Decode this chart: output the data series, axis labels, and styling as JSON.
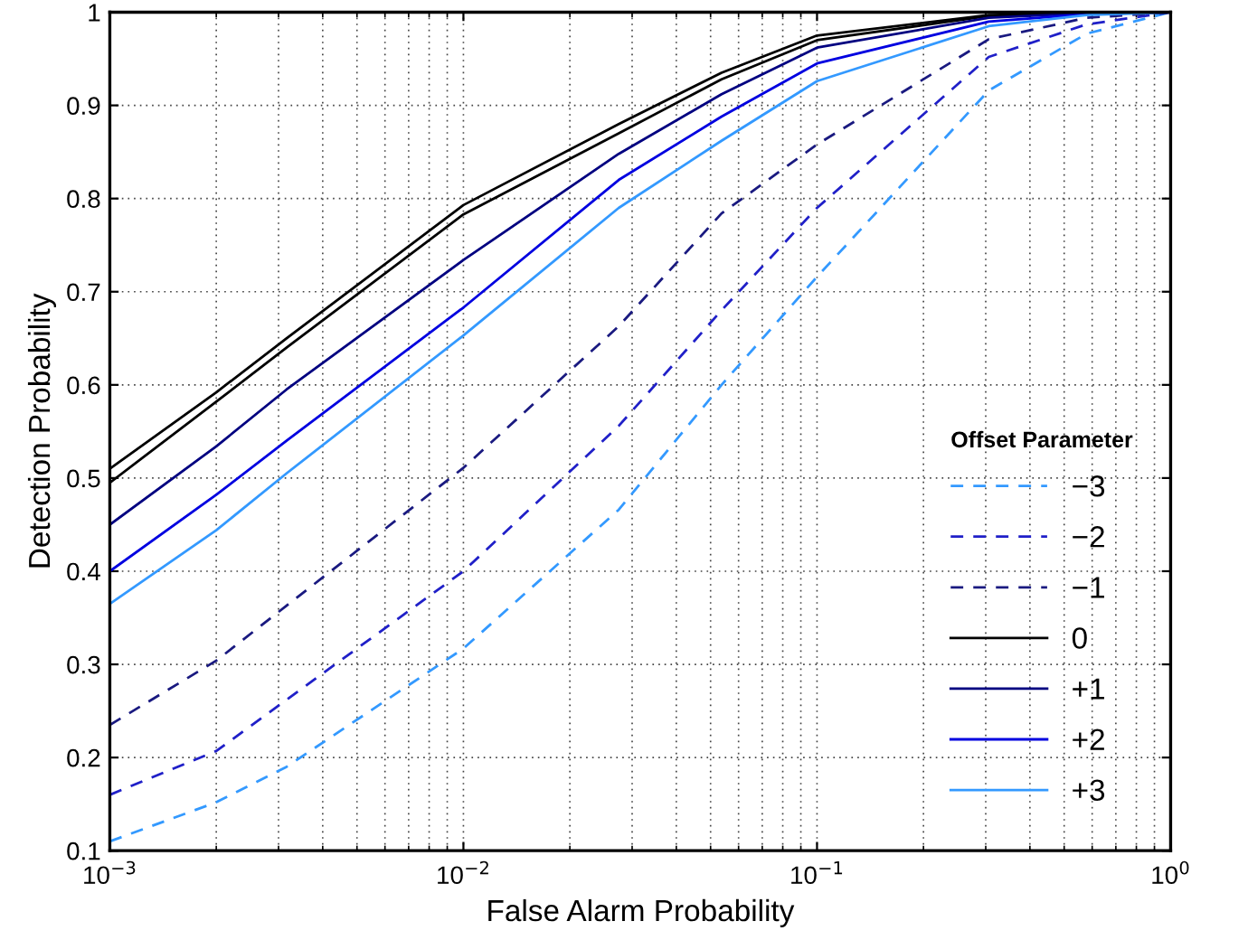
{
  "chart_data": {
    "type": "line",
    "xlabel": "False Alarm Probability",
    "ylabel": "Detection Probability",
    "legend_title": "Offset Parameter",
    "log": "x",
    "xlim": [
      0.001,
      1
    ],
    "ylim": [
      0.1,
      1
    ],
    "xticks": [
      {
        "value": 0.001,
        "label": "10$^{−3}$"
      },
      {
        "value": 0.01,
        "label": "10$^{−2}$"
      },
      {
        "value": 0.1,
        "label": "10$^{−1}$"
      },
      {
        "value": 1,
        "label": "10$^{0}$"
      }
    ],
    "yticks": [
      0.1,
      {
        "value": 0.2,
        "label": "0.2"
      },
      {
        "value": 0.3,
        "label": "0.3"
      },
      {
        "value": 0.4,
        "label": "0.4"
      },
      {
        "value": 0.5,
        "label": "0.5"
      },
      {
        "value": 0.6,
        "label": "0.6"
      },
      {
        "value": 0.7,
        "label": "0.7"
      },
      {
        "value": 0.8,
        "label": "0.8"
      },
      {
        "value": 0.9,
        "label": "0.9"
      },
      1
    ],
    "grid": true,
    "legend": "lower right",
    "marker": "none",
    "x": [
      0.001,
      0.002,
      0.00316,
      0.01,
      0.0275,
      0.0537,
      0.1,
      0.306,
      0.579,
      1
    ],
    "series": [
      {
        "color": "#000000",
        "line_style": "solid",
        "values": [
          0.51,
          0.592,
          0.65,
          0.793,
          0.88,
          0.935,
          0.975,
          0.997,
          0.999,
          1.0
        ]
      },
      {
        "name": "−3",
        "color": "#3399ff",
        "line_style": "dashed",
        "values": [
          0.11,
          0.152,
          0.19,
          0.317,
          0.466,
          0.6,
          0.716,
          0.916,
          0.977,
          1.0
        ]
      },
      {
        "name": "−2",
        "color": "#2020c8",
        "line_style": "dashed",
        "values": [
          0.16,
          0.207,
          0.262,
          0.4,
          0.556,
          0.68,
          0.79,
          0.952,
          0.987,
          1.0
        ]
      },
      {
        "name": "−1",
        "color": "#1a1a80",
        "line_style": "dashed",
        "values": [
          0.235,
          0.304,
          0.363,
          0.511,
          0.663,
          0.784,
          0.858,
          0.971,
          0.994,
          1.0
        ]
      },
      {
        "name": "0",
        "color": "#000000",
        "line_style": "solid",
        "values": [
          0.495,
          0.582,
          0.64,
          0.783,
          0.87,
          0.928,
          0.97,
          0.996,
          0.999,
          1.0
        ]
      },
      {
        "name": "+1",
        "color": "#000080",
        "line_style": "solid",
        "values": [
          0.45,
          0.534,
          0.595,
          0.734,
          0.848,
          0.912,
          0.962,
          0.994,
          0.999,
          1.0
        ]
      },
      {
        "name": "+2",
        "color": "#0000e0",
        "line_style": "solid",
        "values": [
          0.4,
          0.482,
          0.54,
          0.683,
          0.82,
          0.888,
          0.945,
          0.99,
          0.998,
          1.0
        ]
      },
      {
        "name": "+3",
        "color": "#3399ff",
        "line_style": "solid",
        "values": [
          0.365,
          0.444,
          0.505,
          0.653,
          0.79,
          0.862,
          0.926,
          0.985,
          0.997,
          1.0
        ]
      }
    ]
  }
}
